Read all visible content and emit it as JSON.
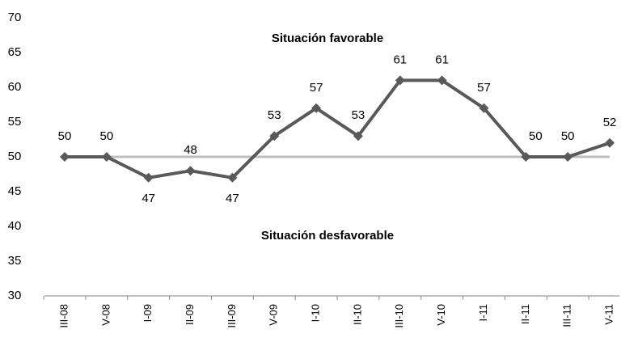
{
  "chart_data": {
    "type": "line",
    "categories": [
      "III-08",
      "V-08",
      "I-09",
      "II-09",
      "III-09",
      "V-09",
      "I-10",
      "II-10",
      "III-10",
      "V-10",
      "I-11",
      "II-11",
      "III-11",
      "V-11"
    ],
    "series": [
      {
        "name": null,
        "color": "#595959",
        "values": [
          50,
          50,
          47,
          48,
          47,
          53,
          57,
          53,
          61,
          61,
          57,
          50,
          50,
          52
        ]
      }
    ],
    "ylim": [
      30,
      70
    ],
    "yticks": [
      30,
      35,
      40,
      45,
      50,
      55,
      60,
      65,
      70
    ],
    "grid": false,
    "reference_line": {
      "value": 50,
      "color": "#bfbfbf"
    },
    "annotations": [
      {
        "text": "Situación favorable",
        "value": 67
      },
      {
        "text": "Situación desfavorable",
        "value": 38.6
      }
    ]
  }
}
